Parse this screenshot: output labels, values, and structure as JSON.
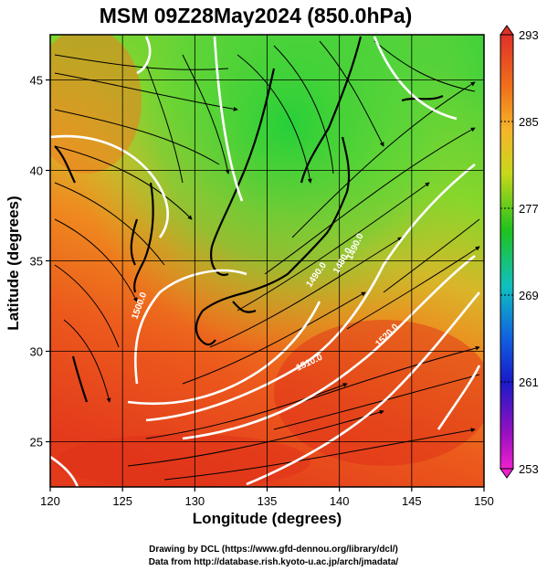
{
  "title": "MSM 09Z28May2024 (850.0hPa)",
  "map": {
    "x_axis": {
      "label": "Longitude (degrees)",
      "range": [
        120,
        150
      ],
      "ticks": [
        {
          "value": 120,
          "label": "120"
        },
        {
          "value": 125,
          "label": "125"
        },
        {
          "value": 130,
          "label": "130"
        },
        {
          "value": 135,
          "label": "135"
        },
        {
          "value": 140,
          "label": "140"
        },
        {
          "value": 145,
          "label": "145"
        },
        {
          "value": 150,
          "label": "150"
        }
      ]
    },
    "y_axis": {
      "label": "Latitude  (degrees)",
      "range": [
        22.5,
        47.5
      ],
      "ticks": [
        {
          "value": 25,
          "label": "25"
        },
        {
          "value": 30,
          "label": "30"
        },
        {
          "value": 35,
          "label": "35"
        },
        {
          "value": 40,
          "label": "40"
        },
        {
          "value": 45,
          "label": "45"
        }
      ]
    },
    "grid": true,
    "contour_labels": [
      "1500.0",
      "1510.0",
      "1490.0",
      "1480.0",
      "1490.0",
      "1520.0"
    ]
  },
  "colorbar": {
    "range": [
      253,
      293
    ],
    "labels": [
      {
        "value": 293,
        "label": "293"
      },
      {
        "value": 285,
        "label": "285"
      },
      {
        "value": 277,
        "label": "277"
      },
      {
        "value": 269,
        "label": "269"
      },
      {
        "value": 261,
        "label": "261"
      },
      {
        "value": 253,
        "label": "253"
      }
    ]
  },
  "credits": {
    "line1": "Drawing by DCL (https://www.gfd-dennou.org/library/dcl/)",
    "line2": "Data from http://database.rish.kyoto-u.ac.jp/arch/jmadata/"
  }
}
